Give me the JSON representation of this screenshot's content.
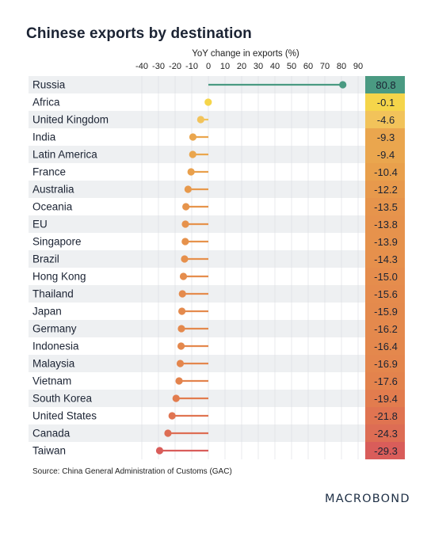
{
  "title": "Chinese exports by destination",
  "source": "Source: China General Administration of Customs (GAC)",
  "logo": "MACROBOND",
  "chart_data": {
    "type": "lollipop",
    "title": "Chinese exports by destination",
    "xlabel": "YoY change in exports (%)",
    "xlim": [
      -40,
      90
    ],
    "xticks": [
      -40,
      -30,
      -20,
      -10,
      0,
      10,
      20,
      30,
      40,
      50,
      60,
      70,
      80,
      90
    ],
    "categories": [
      "Russia",
      "Africa",
      "United Kingdom",
      "India",
      "Latin America",
      "France",
      "Australia",
      "Oceania",
      "EU",
      "Singapore",
      "Brazil",
      "Hong Kong",
      "Thailand",
      "Japan",
      "Germany",
      "Indonesia",
      "Malaysia",
      "Vietnam",
      "South Korea",
      "United States",
      "Canada",
      "Taiwan"
    ],
    "values": [
      80.8,
      -0.1,
      -4.6,
      -9.3,
      -9.4,
      -10.4,
      -12.2,
      -13.5,
      -13.8,
      -13.9,
      -14.3,
      -15.0,
      -15.6,
      -15.9,
      -16.2,
      -16.4,
      -16.9,
      -17.6,
      -19.4,
      -21.8,
      -24.3,
      -29.3
    ],
    "value_labels": [
      "80.8",
      "-0.1",
      "-4.6",
      "-9.3",
      "-9.4",
      "-10.4",
      "-12.2",
      "-13.5",
      "-13.8",
      "-13.9",
      "-14.3",
      "-15.0",
      "-15.6",
      "-15.9",
      "-16.2",
      "-16.4",
      "-16.9",
      "-17.6",
      "-19.4",
      "-21.8",
      "-24.3",
      "-29.3"
    ],
    "colors": {
      "positive": "#4a9a82",
      "near_zero": "#f5d54a",
      "warm_light": "#f2c35a",
      "warm_mid": "#e9a24c",
      "warm_dark": "#e27d4d",
      "negative_extreme": "#d95d5a",
      "row_band": "#eef0f2"
    },
    "grid": true
  }
}
